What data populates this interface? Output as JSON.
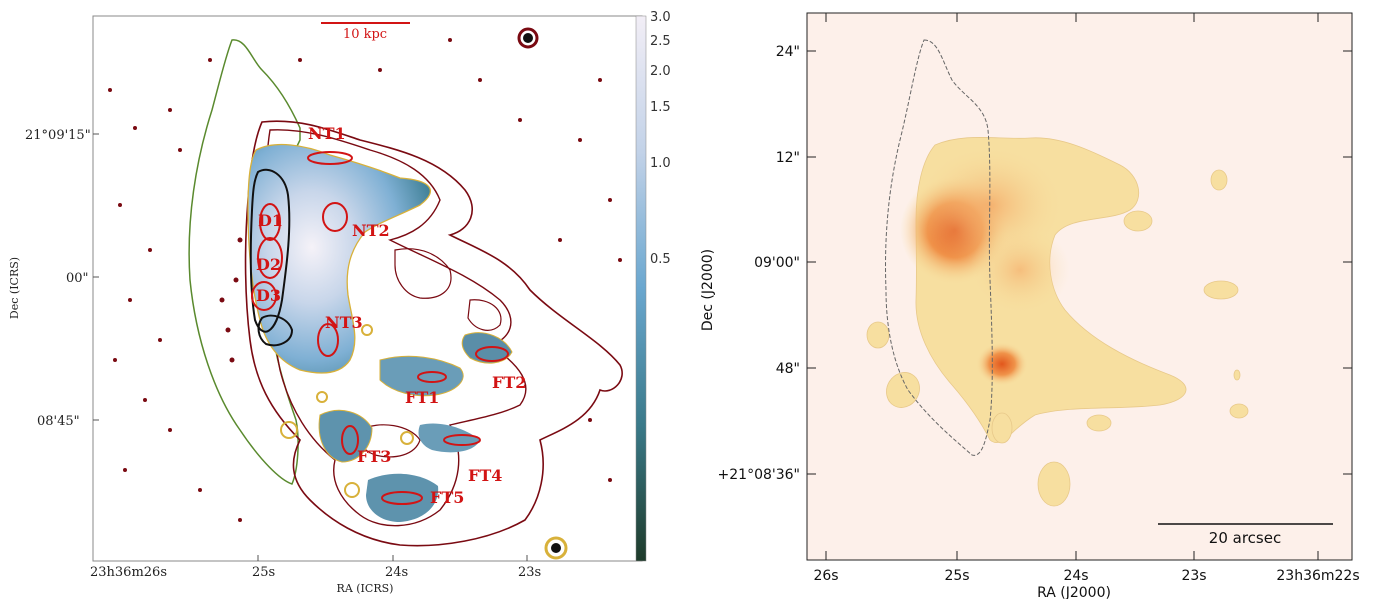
{
  "left_panel": {
    "scale_bar_label": "10 kpc",
    "x_axis_label": "RA (ICRS)",
    "y_axis_label": "Dec (ICRS)",
    "x_ticks": [
      "23h36m26s",
      "25s",
      "24s",
      "23s"
    ],
    "y_ticks": [
      "21°09'15\"",
      "00\"",
      "08'45\""
    ],
    "colorbar_ticks": [
      "3.0",
      "2.5",
      "2.0",
      "1.5",
      "1.0",
      "0.5"
    ],
    "region_labels": [
      "NT1",
      "D1",
      "NT2",
      "D2",
      "D3",
      "NT3",
      "FT1",
      "FT2",
      "FT3",
      "FT4",
      "FT5"
    ],
    "colors": {
      "region": "#d21414",
      "contour": "#7a0a12",
      "yellow_contour": "#d8b13a",
      "green_contour": "#5a8a2e"
    }
  },
  "right_panel": {
    "x_axis_label": "RA (J2000)",
    "y_axis_label": "Dec (J2000)",
    "x_ticks": [
      "26s",
      "25s",
      "24s",
      "23s",
      "23h36m22s"
    ],
    "y_ticks": [
      "24\"",
      "12\"",
      "09'00\"",
      "48\"",
      "+21°08'36\""
    ],
    "scale_bar_label": "20 arcsec",
    "colors": {
      "background": "#fdf0ea",
      "emission_low": "#f7dfa0",
      "emission_high": "#e2571c"
    }
  }
}
